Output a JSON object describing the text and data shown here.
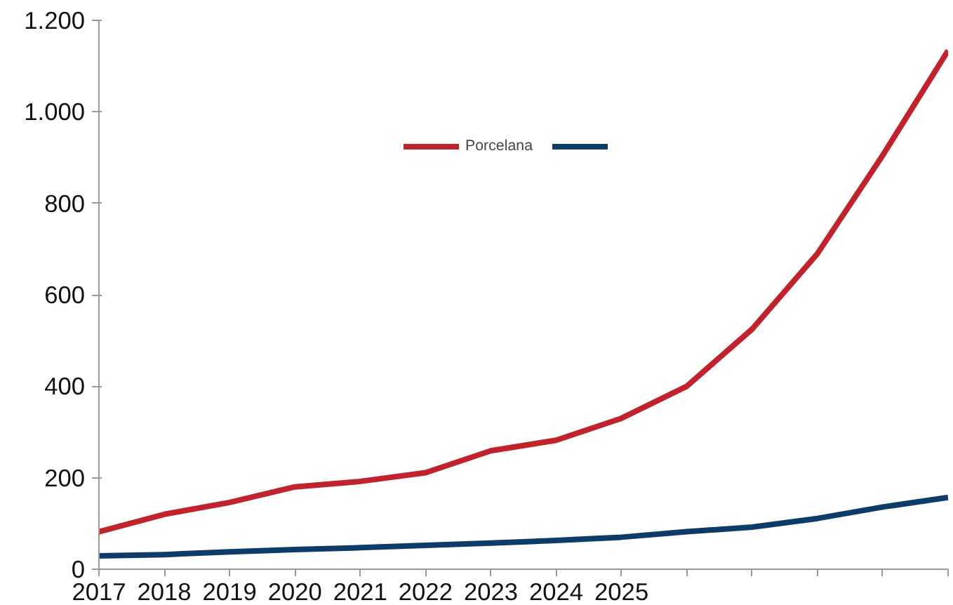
{
  "chart_data": {
    "type": "line",
    "categories": [
      "2017",
      "2018",
      "2019",
      "2020",
      "2021",
      "2022",
      "2023",
      "2024",
      "2025",
      null,
      null,
      null,
      null,
      null
    ],
    "ylim": [
      0,
      1200
    ],
    "yticks": [
      0,
      200,
      400,
      600,
      800,
      {
        "value": 1000,
        "label": "1.000"
      },
      {
        "value": 1200,
        "label": "1.200"
      }
    ],
    "grid": false,
    "legend": "top",
    "marker": "none",
    "line_style": "solid",
    "series": [
      {
        "name": "Porcelana",
        "color": "#c0232b",
        "values": [
          82,
          120,
          146,
          180,
          192,
          211,
          259,
          282,
          330,
          400,
          525,
          690,
          905,
          1134
        ]
      },
      {
        "color": "#0d3c69",
        "values": [
          29,
          32,
          38,
          43,
          47,
          52,
          57,
          63,
          70,
          82,
          92,
          111,
          136,
          157
        ]
      }
    ]
  }
}
